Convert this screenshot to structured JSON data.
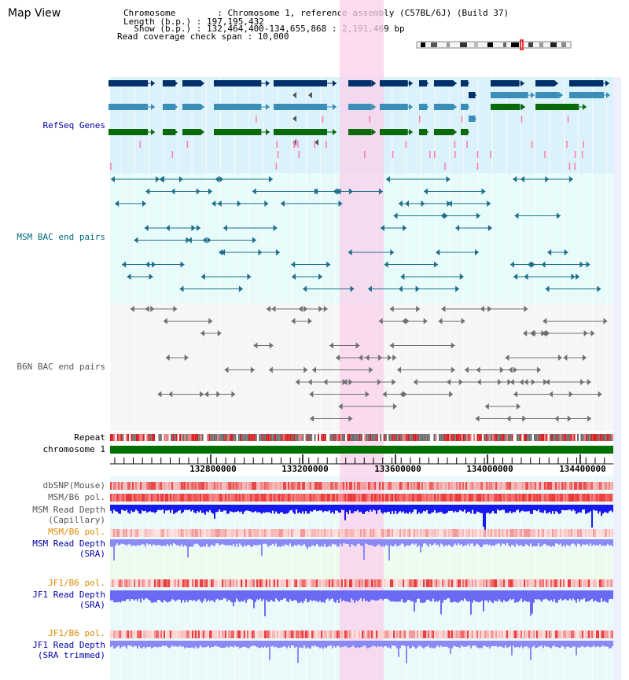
{
  "title": "Map View",
  "info": {
    "chromosome": "Chromosome        : Chromosome 1, reference assembly (C57BL/6J) (Build 37)",
    "length": "Length (b.p.) : 197,195,432",
    "show": "  Show (b.p.) : 132,464,400-134,655,868 : 2,191,469 bp",
    "coverage": "Read coverage check span : 10,000"
  },
  "labels": {
    "refseq": "RefSeq Genes",
    "msm_bac": "MSM BAC end pairs",
    "b6n_bac": "B6N BAC end pairs",
    "repeat": "Repeat",
    "chromosome": "chromosome 1",
    "dbsnp": "dbSNP(Mouse)",
    "msm_b6_pol": "MSM/B6 pol.",
    "msm_depth_cap_1": "MSM Read Depth",
    "msm_depth_cap_2": "(Capillary)",
    "msm_b6_pol_sra": "MSM/B6 pol.",
    "msm_depth_sra_1": "MSM Read Depth",
    "msm_depth_sra_2": "(SRA)",
    "jf1_b6_pol": "JF1/B6 pol.",
    "jf1_depth_sra_1": "JF1 Read Depth",
    "jf1_depth_sra_2": "(SRA)",
    "jf1_b6_pol_trim": "JF1/B6 pol.",
    "jf1_depth_trim_1": "JF1 Read Depth",
    "jf1_depth_trim_2": "(SRA trimmed)"
  },
  "axis_ticks": [
    "132800000",
    "133200000",
    "133600000",
    "134000000",
    "134400000"
  ],
  "colors": {
    "refseq_bg": "#dcf2fa",
    "msm_bg": "#e8fbfb",
    "b6n_bg": "#f6f6f6",
    "lower_bg": "#eafafa",
    "highlight": "#f9d0ec",
    "refseq_navy": "#00306a",
    "refseq_blue": "#3a8eb8",
    "refseq_green": "#0a6a0a",
    "msm_line": "#1e6e8a",
    "b6n_line": "#707070",
    "chrom_green": "#007000",
    "label_blue": "#0000aa",
    "label_orange": "#e08a00",
    "label_teal": "#006a7a",
    "label_gray": "#333333"
  }
}
